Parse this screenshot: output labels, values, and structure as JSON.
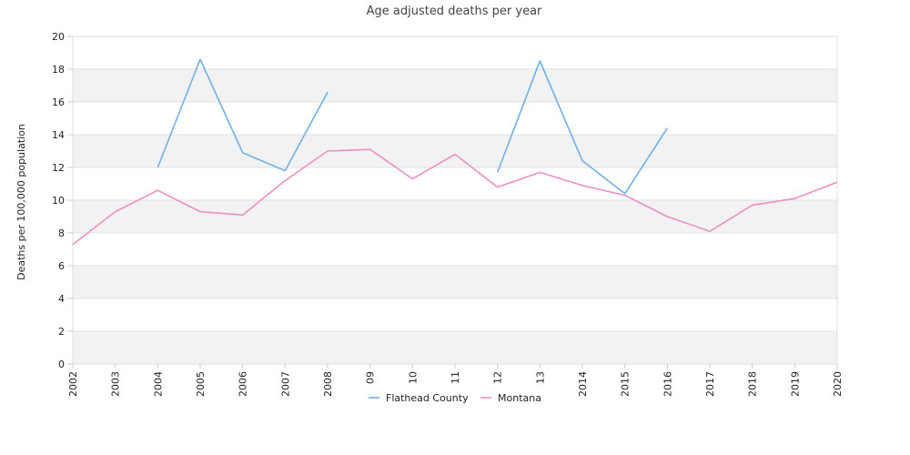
{
  "chart_data": {
    "type": "line",
    "title": "Age adjusted deaths per year",
    "xlabel": "",
    "ylabel": "Deaths per 100,000 population",
    "x": [
      "2002",
      "2003",
      "2004",
      "2005",
      "2006",
      "2007",
      "2008",
      "09",
      "10",
      "11",
      "12",
      "13",
      "2014",
      "2015",
      "2016",
      "2017",
      "2018",
      "2019",
      "2020"
    ],
    "ylim": [
      0,
      20
    ],
    "yticks": [
      "0",
      "2",
      "4",
      "6",
      "8",
      "10",
      "12",
      "14",
      "16",
      "18",
      "20"
    ],
    "grid": "alternating horizontal bands",
    "legend_position": "bottom-center",
    "series": [
      {
        "name": "Flathead County",
        "color": "#6fb0ea",
        "values": [
          null,
          null,
          12.0,
          18.6,
          12.9,
          11.8,
          16.6,
          null,
          null,
          null,
          11.7,
          18.5,
          12.4,
          10.4,
          14.4,
          null,
          null,
          null,
          null
        ]
      },
      {
        "name": "Montana",
        "color": "#ee8fc2",
        "values": [
          7.3,
          9.3,
          10.6,
          9.3,
          9.1,
          11.2,
          13.0,
          13.1,
          11.3,
          12.8,
          10.8,
          11.7,
          10.9,
          10.3,
          9.0,
          8.1,
          9.7,
          10.1,
          11.1
        ]
      }
    ]
  }
}
